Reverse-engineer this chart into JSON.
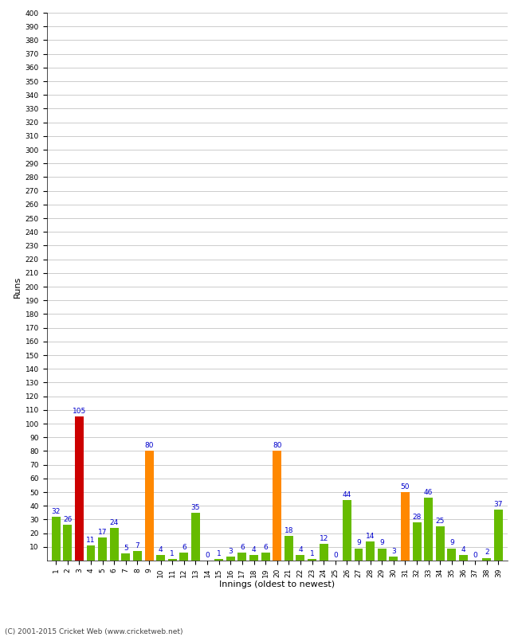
{
  "innings": [
    1,
    2,
    3,
    4,
    5,
    6,
    7,
    8,
    9,
    10,
    11,
    12,
    13,
    14,
    15,
    16,
    17,
    18,
    19,
    20,
    21,
    22,
    23,
    24,
    25,
    26,
    27,
    28,
    29,
    30,
    31,
    32,
    33,
    34,
    35,
    36,
    37,
    38,
    39
  ],
  "values": [
    32,
    26,
    105,
    11,
    17,
    24,
    5,
    7,
    80,
    4,
    1,
    6,
    35,
    0,
    1,
    3,
    6,
    4,
    6,
    80,
    18,
    4,
    1,
    12,
    0,
    44,
    9,
    14,
    9,
    3,
    50,
    28,
    46,
    25,
    9,
    4,
    0,
    2,
    37
  ],
  "colors": [
    "#66bb00",
    "#66bb00",
    "#cc0000",
    "#66bb00",
    "#66bb00",
    "#66bb00",
    "#66bb00",
    "#66bb00",
    "#ff8800",
    "#66bb00",
    "#66bb00",
    "#66bb00",
    "#66bb00",
    "#66bb00",
    "#66bb00",
    "#66bb00",
    "#66bb00",
    "#66bb00",
    "#66bb00",
    "#ff8800",
    "#66bb00",
    "#66bb00",
    "#66bb00",
    "#66bb00",
    "#66bb00",
    "#66bb00",
    "#66bb00",
    "#66bb00",
    "#66bb00",
    "#66bb00",
    "#ff8800",
    "#66bb00",
    "#66bb00",
    "#66bb00",
    "#66bb00",
    "#66bb00",
    "#66bb00",
    "#66bb00",
    "#66bb00"
  ],
  "ylabel": "Runs",
  "xlabel": "Innings (oldest to newest)",
  "ylim": [
    0,
    400
  ],
  "yticks": [
    10,
    20,
    30,
    40,
    50,
    60,
    70,
    80,
    90,
    100,
    110,
    120,
    130,
    140,
    150,
    160,
    170,
    180,
    190,
    200,
    210,
    220,
    230,
    240,
    250,
    260,
    270,
    280,
    290,
    300,
    310,
    320,
    330,
    340,
    350,
    360,
    370,
    380,
    390,
    400
  ],
  "bg_color": "#ffffff",
  "grid_color": "#cccccc",
  "label_color": "#0000cc",
  "bar_label_fontsize": 6.5,
  "axis_label_fontsize": 8,
  "tick_fontsize": 6.5,
  "footer": "(C) 2001-2015 Cricket Web (www.cricketweb.net)"
}
